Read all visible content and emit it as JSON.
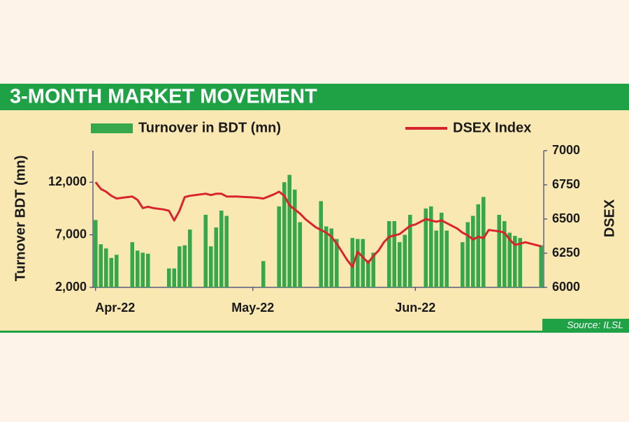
{
  "chart_data": {
    "type": "combo",
    "title": "3-MONTH MARKET MOVEMENT",
    "source": "Source: ILSL",
    "ylabel": "Turnover BDT (mn)",
    "y2label": "DSEX",
    "categories": [
      "Apr-22",
      null,
      null,
      null,
      null,
      null,
      null,
      null,
      null,
      null,
      null,
      null,
      null,
      null,
      null,
      null,
      null,
      null,
      null,
      null,
      null,
      null,
      null,
      null,
      null,
      null,
      null,
      null,
      null,
      null,
      "May-22",
      null,
      null,
      null,
      null,
      null,
      null,
      null,
      null,
      null,
      null,
      null,
      null,
      null,
      null,
      null,
      null,
      null,
      null,
      null,
      null,
      null,
      null,
      null,
      null,
      null,
      null,
      null,
      null,
      null,
      null,
      "Jun-22",
      null,
      null,
      null,
      null,
      null,
      null,
      null,
      null,
      null,
      null,
      null,
      null,
      null,
      null,
      null,
      null,
      null,
      null,
      null,
      null,
      null,
      null,
      null,
      null
    ],
    "ylim": [
      2000,
      15000
    ],
    "yticks": [
      {
        "value": 2000,
        "label": "2,000"
      },
      {
        "value": 7000,
        "label": "7,000"
      },
      {
        "value": 12000,
        "label": "12,000"
      }
    ],
    "y2lim": [
      6000,
      7000
    ],
    "y2ticks": [
      6000,
      6250,
      6500,
      6750,
      7000
    ],
    "legend": "top",
    "series": [
      {
        "name": "Turnover in BDT (mn)",
        "type": "bar",
        "color": "#35a84b",
        "values": [
          8400,
          6100,
          5700,
          4800,
          5100,
          null,
          null,
          6300,
          5500,
          5300,
          5200,
          null,
          null,
          null,
          3800,
          3800,
          5900,
          6000,
          7500,
          null,
          null,
          8900,
          5900,
          7700,
          9300,
          8800,
          null,
          null,
          null,
          null,
          null,
          null,
          4500,
          null,
          null,
          9700,
          12000,
          12700,
          11300,
          8200,
          null,
          null,
          null,
          10200,
          7800,
          7600,
          6600,
          null,
          null,
          6700,
          6600,
          6600,
          4600,
          5300,
          null,
          null,
          8300,
          8300,
          6300,
          7000,
          8900,
          null,
          null,
          9500,
          9700,
          7400,
          9100,
          7400,
          null,
          null,
          6300,
          8200,
          8800,
          9900,
          10600,
          null,
          null,
          8900,
          8300,
          7200,
          6900,
          6700,
          null,
          null,
          null,
          6000
        ]
      },
      {
        "name": "DSEX Index",
        "type": "line",
        "color": "#d9232d",
        "axis": "y2",
        "values": [
          6770,
          6720,
          6700,
          6670,
          6650,
          6655,
          6660,
          6665,
          6640,
          6580,
          6590,
          6580,
          6575,
          6570,
          6560,
          6490,
          6560,
          6660,
          6670,
          6675,
          6680,
          6685,
          6675,
          6685,
          6685,
          6665,
          6665,
          6665,
          6662,
          6660,
          6658,
          6655,
          6650,
          6665,
          6680,
          6700,
          6670,
          6600,
          6570,
          6540,
          6500,
          6470,
          6440,
          6420,
          6400,
          6370,
          6320,
          6260,
          6200,
          6150,
          6260,
          6220,
          6180,
          6230,
          6270,
          6330,
          6370,
          6380,
          6390,
          6420,
          6450,
          6460,
          6480,
          6500,
          6490,
          6480,
          6490,
          6470,
          6450,
          6430,
          6400,
          6380,
          6350,
          6370,
          6360,
          6420,
          6415,
          6410,
          6400,
          6350,
          6310,
          6320,
          6330,
          6320,
          6310,
          6300
        ]
      }
    ]
  }
}
